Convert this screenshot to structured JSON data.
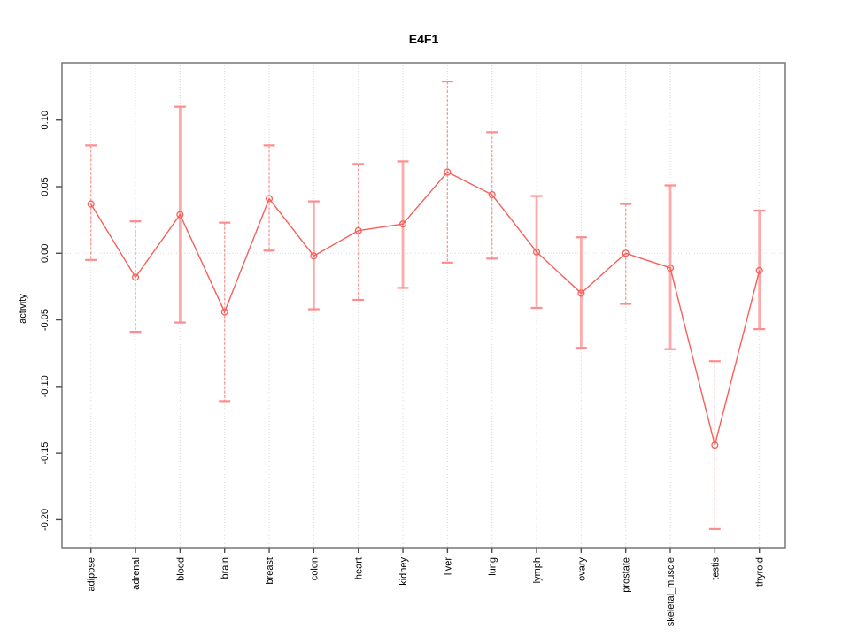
{
  "window": {
    "background": "#ffffff"
  },
  "chart_data": {
    "type": "line",
    "title": "E4F1",
    "xlabel": "",
    "ylabel": "activity",
    "legend_position": "none",
    "grid": {
      "vertical_gridlines": "dotted, one per category",
      "horizontal_zero_line": "dotted"
    },
    "categories": [
      "adipose",
      "adrenal",
      "blood",
      "brain",
      "breast",
      "colon",
      "heart",
      "kidney",
      "liver",
      "lung",
      "lymph",
      "ovary",
      "prostate",
      "skeletal_muscle",
      "testis",
      "thyroid"
    ],
    "series": [
      {
        "name": "activity",
        "marker": "open-circle",
        "values": [
          0.037,
          -0.018,
          0.029,
          -0.044,
          0.041,
          -0.002,
          0.017,
          0.022,
          0.061,
          0.044,
          0.001,
          -0.03,
          0.0,
          -0.011,
          -0.144,
          -0.013
        ],
        "error_low": [
          -0.005,
          -0.059,
          -0.052,
          -0.111,
          0.002,
          -0.042,
          -0.035,
          -0.026,
          -0.007,
          -0.004,
          -0.041,
          -0.071,
          -0.038,
          -0.072,
          -0.207,
          -0.057
        ],
        "error_high": [
          0.081,
          0.024,
          0.11,
          0.023,
          0.081,
          0.039,
          0.067,
          0.069,
          0.129,
          0.091,
          0.043,
          0.012,
          0.037,
          0.051,
          -0.081,
          0.032
        ],
        "whisker_style": [
          "dashed",
          "dashed",
          "solid",
          "dashed",
          "dashed",
          "solid",
          "dashed",
          "solid",
          "dashed",
          "dashed",
          "solid",
          "solid",
          "dashed",
          "solid",
          "dashed",
          "solid"
        ]
      }
    ],
    "ylim": [
      -0.221,
      0.143
    ],
    "yticks": [
      {
        "value": 0.1,
        "label": "0.10"
      },
      {
        "value": 0.05,
        "label": "0.05"
      },
      {
        "value": 0.0,
        "label": "0.00"
      },
      {
        "value": -0.05,
        "label": "-0.05"
      },
      {
        "value": -0.1,
        "label": "-0.10"
      },
      {
        "value": -0.15,
        "label": "-0.15"
      },
      {
        "value": -0.2,
        "label": "-0.20"
      }
    ],
    "colors": {
      "point_line": "#f75f5a",
      "whisker_dashed": "#ff9898",
      "whisker_solid": "#ffaaaa",
      "whisker_cap": "#ff8c8c",
      "gridline": "#d9d9d9",
      "axis_box": "#7f7f7f",
      "tick": "#4d4d4d",
      "text": "#000000"
    }
  }
}
